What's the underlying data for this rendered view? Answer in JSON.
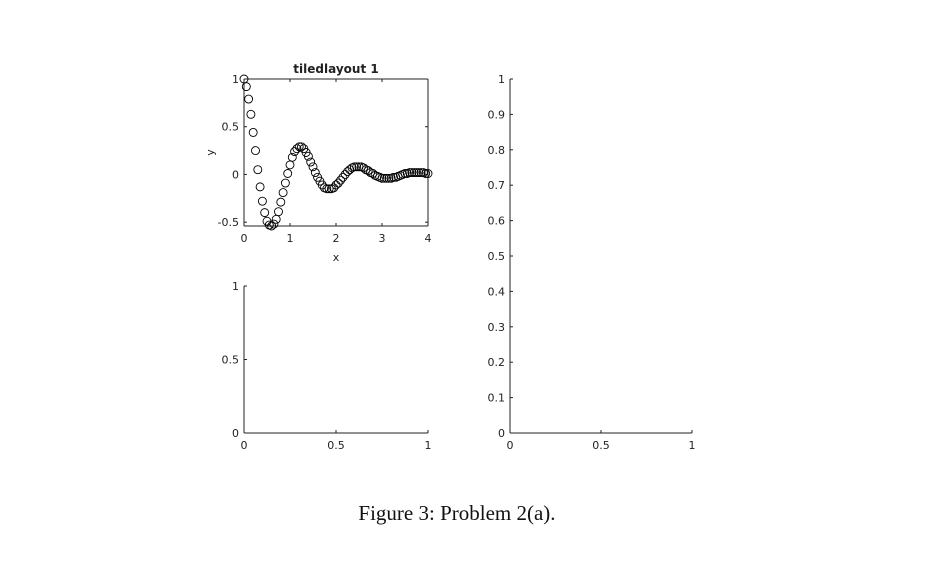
{
  "chart_data": [
    {
      "type": "scatter",
      "title": "tiledlayout 1",
      "x_label": "x",
      "y_label": "y",
      "box": true,
      "color": "#000000",
      "x": [
        0,
        0.05,
        0.1,
        0.15,
        0.2,
        0.25,
        0.3,
        0.35,
        0.4,
        0.45,
        0.5,
        0.55,
        0.6,
        0.65,
        0.7,
        0.75,
        0.8,
        0.85,
        0.9,
        0.95,
        1,
        1.05,
        1.1,
        1.15,
        1.2,
        1.25,
        1.3,
        1.35,
        1.4,
        1.45,
        1.5,
        1.55,
        1.6,
        1.65,
        1.7,
        1.75,
        1.8,
        1.85,
        1.9,
        1.95,
        2,
        2.05,
        2.1,
        2.15,
        2.2,
        2.25,
        2.3,
        2.35,
        2.4,
        2.45,
        2.5,
        2.55,
        2.6,
        2.65,
        2.7,
        2.75,
        2.8,
        2.85,
        2.9,
        2.95,
        3,
        3.05,
        3.1,
        3.15,
        3.2,
        3.25,
        3.3,
        3.35,
        3.4,
        3.45,
        3.5,
        3.55,
        3.6,
        3.65,
        3.7,
        3.75,
        3.8,
        3.85,
        3.9,
        3.95,
        4
      ],
      "values": [
        1,
        0.92,
        0.79,
        0.63,
        0.44,
        0.25,
        0.05,
        -0.13,
        -0.28,
        -0.4,
        -0.49,
        -0.53,
        -0.54,
        -0.52,
        -0.47,
        -0.39,
        -0.29,
        -0.19,
        -0.09,
        0.01,
        0.1,
        0.18,
        0.24,
        0.27,
        0.29,
        0.29,
        0.27,
        0.23,
        0.19,
        0.13,
        0.08,
        0.02,
        -0.03,
        -0.07,
        -0.11,
        -0.14,
        -0.15,
        -0.15,
        -0.15,
        -0.14,
        -0.11,
        -0.09,
        -0.06,
        -0.03,
        0,
        0.03,
        0.05,
        0.07,
        0.08,
        0.08,
        0.08,
        0.08,
        0.07,
        0.05,
        0.04,
        0.02,
        0.01,
        -0.01,
        -0.02,
        -0.03,
        -0.04,
        -0.04,
        -0.04,
        -0.04,
        -0.04,
        -0.03,
        -0.03,
        -0.02,
        -0.01,
        0,
        0.01,
        0.01,
        0.02,
        0.02,
        0.02,
        0.02,
        0.02,
        0.02,
        0.02,
        0.01,
        0.01
      ],
      "xlim": [
        0,
        4
      ],
      "xticks": [
        0,
        1,
        2,
        3,
        4
      ],
      "ylim": [
        -0.54,
        1
      ],
      "yticks": [
        -0.5,
        0,
        0.5,
        1
      ]
    },
    {
      "type": "empty",
      "box": false,
      "xlim": [
        0,
        1
      ],
      "xticks": [
        0,
        0.5,
        1
      ],
      "ylim": [
        0,
        1
      ],
      "yticks": [
        0,
        0.1,
        0.2,
        0.3,
        0.4,
        0.5,
        0.6,
        0.7,
        0.8,
        0.9,
        1
      ]
    },
    {
      "type": "empty",
      "box": false,
      "xlim": [
        0,
        1
      ],
      "xticks": [
        0,
        0.5,
        1
      ],
      "ylim": [
        0,
        1
      ],
      "yticks": [
        0,
        0.5,
        1
      ]
    }
  ],
  "caption": "Figure 3: Problem 2(a)."
}
